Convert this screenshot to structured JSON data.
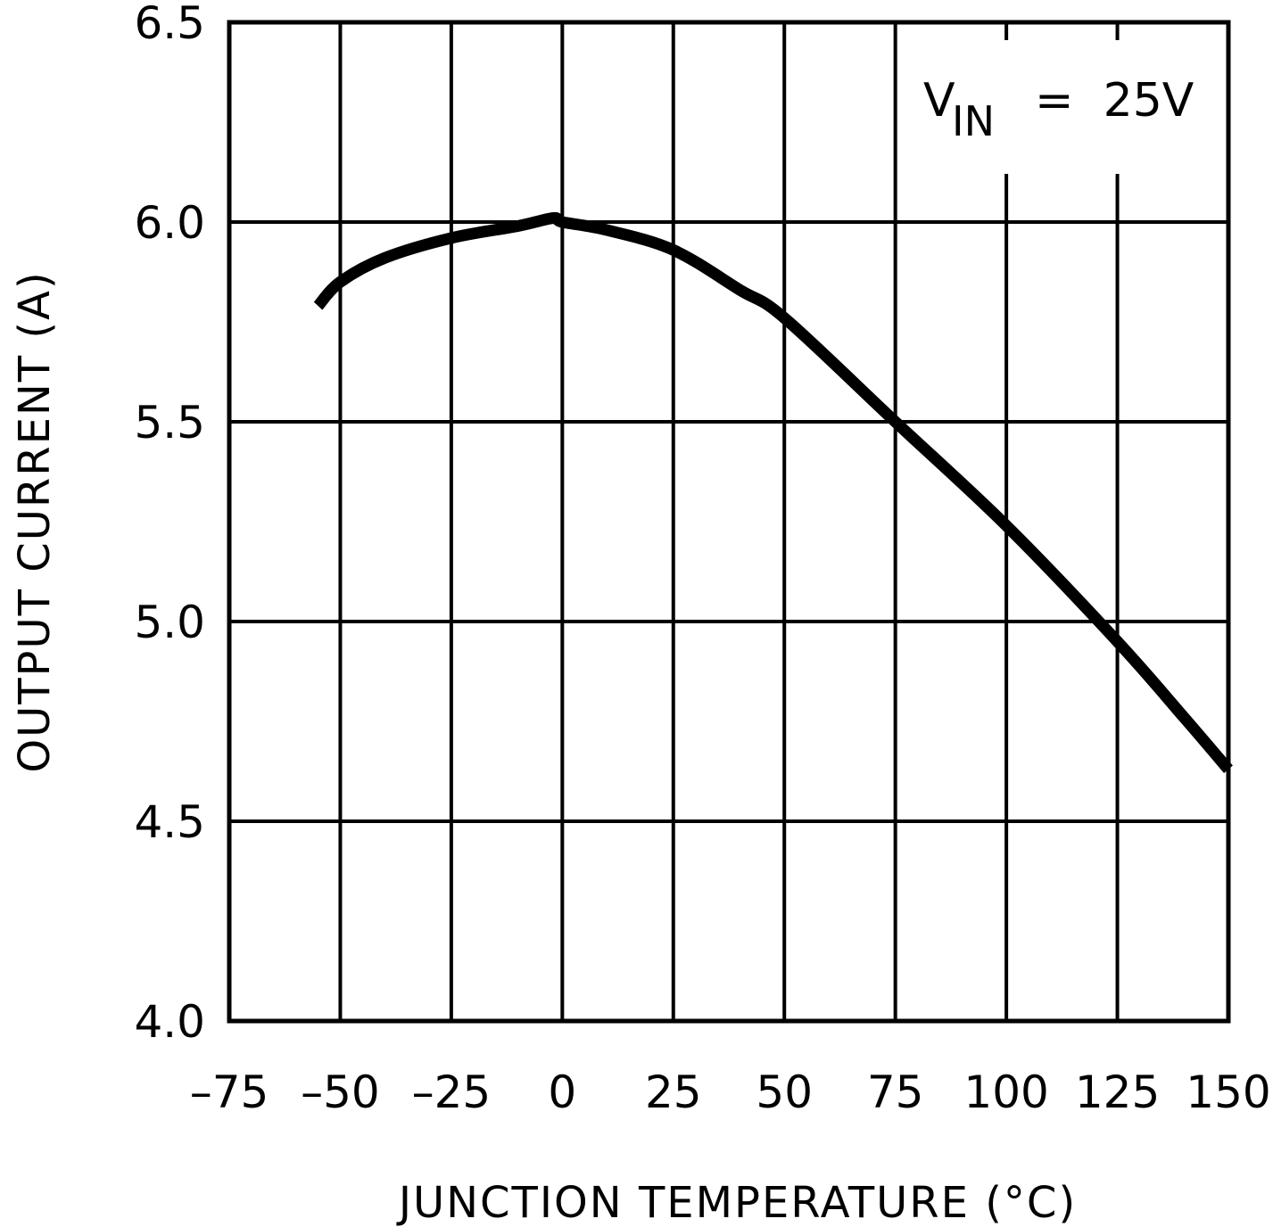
{
  "chart_data": {
    "type": "line",
    "title": "",
    "xlabel": "JUNCTION TEMPERATURE (°C)",
    "ylabel": "OUTPUT CURRENT (A)",
    "xlim": [
      -75,
      150
    ],
    "ylim": [
      4.0,
      6.5
    ],
    "x_ticks": [
      "-75",
      "-50",
      "-25",
      "0",
      "25",
      "50",
      "75",
      "100",
      "125",
      "150"
    ],
    "y_ticks": [
      "4.0",
      "4.5",
      "5.0",
      "5.5",
      "6.0",
      "6.5"
    ],
    "grid": true,
    "legend": null,
    "annotations": [
      {
        "text": "V_IN = 25V",
        "main": "V",
        "sub": "IN",
        "rest": "=  25V",
        "position": "top-right"
      }
    ],
    "series": [
      {
        "name": "Output Current",
        "x": [
          -55,
          -50,
          -40,
          -25,
          -10,
          -2,
          0,
          10,
          25,
          40,
          50,
          75,
          100,
          125,
          140,
          150
        ],
        "y": [
          5.79,
          5.85,
          5.91,
          5.96,
          5.99,
          6.01,
          6.0,
          5.98,
          5.93,
          5.83,
          5.76,
          5.5,
          5.24,
          4.95,
          4.76,
          4.63
        ]
      }
    ]
  }
}
